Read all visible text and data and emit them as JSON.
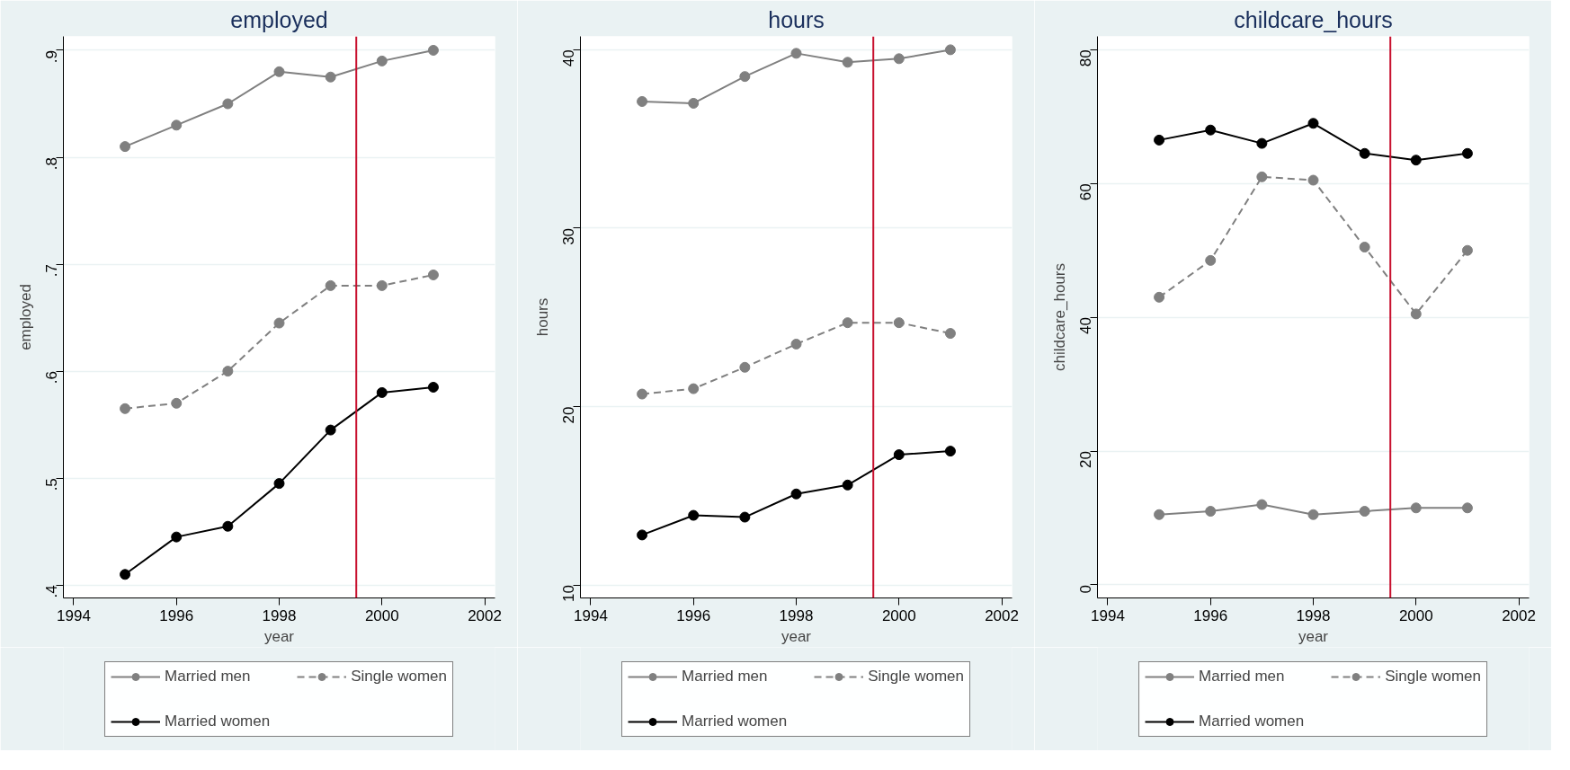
{
  "chart_data": [
    {
      "type": "line",
      "title": "employed",
      "xlabel": "year",
      "ylabel": "employed",
      "x": [
        1995,
        1996,
        1997,
        1998,
        1999,
        2000,
        2001
      ],
      "xlim": [
        1993.8,
        2002.2
      ],
      "xticks": [
        1994,
        1996,
        1998,
        2000,
        2002
      ],
      "ylim": [
        0.388,
        0.913
      ],
      "yticks": [
        {
          "value": 0.4,
          "label": ".4"
        },
        {
          "value": 0.5,
          "label": ".5"
        },
        {
          "value": 0.6,
          "label": ".6"
        },
        {
          "value": 0.7,
          "label": ".7"
        },
        {
          "value": 0.8,
          "label": ".8"
        },
        {
          "value": 0.9,
          "label": ".9"
        }
      ],
      "grid": "y",
      "legend": "bottom",
      "marker": "circle",
      "ref_lines": [
        {
          "axis": "x",
          "value": 1999.5,
          "color": "#c8102e"
        }
      ],
      "series": [
        {
          "name": "Married men",
          "color": "#808080",
          "line_style": "solid",
          "values": [
            0.81,
            0.83,
            0.85,
            0.88,
            0.875,
            0.89,
            0.9
          ]
        },
        {
          "name": "Single women",
          "color": "#808080",
          "line_style": "dashed",
          "values": [
            0.565,
            0.57,
            0.6,
            0.645,
            0.68,
            0.68,
            0.69
          ]
        },
        {
          "name": "Married women",
          "color": "#000000",
          "line_style": "solid",
          "values": [
            0.41,
            0.445,
            0.455,
            0.495,
            0.545,
            0.58,
            0.585
          ]
        }
      ]
    },
    {
      "type": "line",
      "title": "hours",
      "xlabel": "year",
      "ylabel": "hours",
      "x": [
        1995,
        1996,
        1997,
        1998,
        1999,
        2000,
        2001
      ],
      "xlim": [
        1993.8,
        2002.2
      ],
      "xticks": [
        1994,
        1996,
        1998,
        2000,
        2002
      ],
      "ylim": [
        9.27,
        40.75
      ],
      "yticks": [
        10,
        20,
        30,
        40
      ],
      "grid": "y",
      "legend": "bottom",
      "marker": "circle",
      "ref_lines": [
        {
          "axis": "x",
          "value": 1999.5,
          "color": "#c8102e"
        }
      ],
      "series": [
        {
          "name": "Married men",
          "color": "#808080",
          "line_style": "solid",
          "values": [
            37.1,
            37.0,
            38.5,
            39.8,
            39.3,
            39.5,
            40.0
          ]
        },
        {
          "name": "Single women",
          "color": "#808080",
          "line_style": "dashed",
          "values": [
            20.7,
            21.0,
            22.2,
            23.5,
            24.7,
            24.7,
            24.1
          ]
        },
        {
          "name": "Married women",
          "color": "#000000",
          "line_style": "solid",
          "values": [
            12.8,
            13.9,
            13.8,
            15.1,
            15.6,
            17.3,
            17.5
          ]
        }
      ]
    },
    {
      "type": "line",
      "title": "childcare_hours",
      "xlabel": "year",
      "ylabel": "childcare_hours",
      "x": [
        1995,
        1996,
        1997,
        1998,
        1999,
        2000,
        2001
      ],
      "xlim": [
        1993.8,
        2002.2
      ],
      "xticks": [
        1994,
        1996,
        1998,
        2000,
        2002
      ],
      "ylim": [
        -1.96,
        82
      ],
      "yticks": [
        0,
        20,
        40,
        60,
        80
      ],
      "grid": "y",
      "legend": "bottom",
      "marker": "circle",
      "ref_lines": [
        {
          "axis": "x",
          "value": 1999.5,
          "color": "#c8102e"
        }
      ],
      "series": [
        {
          "name": "Married men",
          "color": "#808080",
          "line_style": "solid",
          "values": [
            10.5,
            11.0,
            12.0,
            10.5,
            11.0,
            11.5,
            11.5
          ]
        },
        {
          "name": "Single women",
          "color": "#808080",
          "line_style": "dashed",
          "values": [
            43.0,
            48.5,
            61.0,
            60.5,
            50.5,
            40.5,
            50.0
          ]
        },
        {
          "name": "Married women",
          "color": "#000000",
          "line_style": "solid",
          "values": [
            66.5,
            68.0,
            66.0,
            69.0,
            64.5,
            63.5,
            64.5
          ]
        }
      ]
    }
  ]
}
